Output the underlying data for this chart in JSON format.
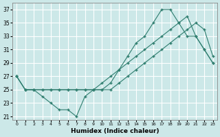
{
  "xlabel": "Humidex (Indice chaleur)",
  "bg_color": "#cce8e8",
  "grid_color": "#ffffff",
  "line_color": "#2e7d6e",
  "xlim": [
    -0.5,
    23.5
  ],
  "ylim": [
    20.5,
    38
  ],
  "xticks": [
    0,
    1,
    2,
    3,
    4,
    5,
    6,
    7,
    8,
    9,
    10,
    11,
    12,
    13,
    14,
    15,
    16,
    17,
    18,
    19,
    20,
    21,
    22,
    23
  ],
  "yticks": [
    21,
    23,
    25,
    27,
    29,
    31,
    33,
    35,
    37
  ],
  "series1_x": [
    0,
    1,
    2,
    3,
    4,
    5,
    6,
    7,
    8,
    9,
    10,
    11,
    12,
    13,
    14,
    15,
    16,
    17,
    18,
    19,
    20,
    21,
    22,
    23
  ],
  "series1_y": [
    27,
    25,
    25,
    24,
    23,
    22,
    22,
    21,
    24,
    25,
    25,
    26,
    28,
    30,
    32,
    33,
    35,
    37,
    37,
    35,
    33,
    33,
    31,
    29
  ],
  "series2_x": [
    0,
    1,
    2,
    3,
    4,
    5,
    6,
    7,
    8,
    9,
    10,
    11,
    12,
    13,
    14,
    15,
    16,
    17,
    18,
    19,
    20,
    21,
    22,
    23
  ],
  "series2_y": [
    27,
    25,
    25,
    25,
    25,
    25,
    25,
    25,
    25,
    25,
    25,
    25,
    26,
    27,
    28,
    29,
    30,
    31,
    32,
    33,
    34,
    35,
    34,
    30
  ],
  "series3_x": [
    0,
    1,
    2,
    3,
    4,
    5,
    6,
    7,
    8,
    9,
    10,
    11,
    12,
    13,
    14,
    15,
    16,
    17,
    18,
    19,
    20,
    21,
    22,
    23
  ],
  "series3_y": [
    27,
    25,
    25,
    25,
    25,
    25,
    25,
    25,
    25,
    25,
    26,
    27,
    28,
    29,
    30,
    31,
    32,
    33,
    34,
    35,
    36,
    33,
    31,
    29
  ]
}
